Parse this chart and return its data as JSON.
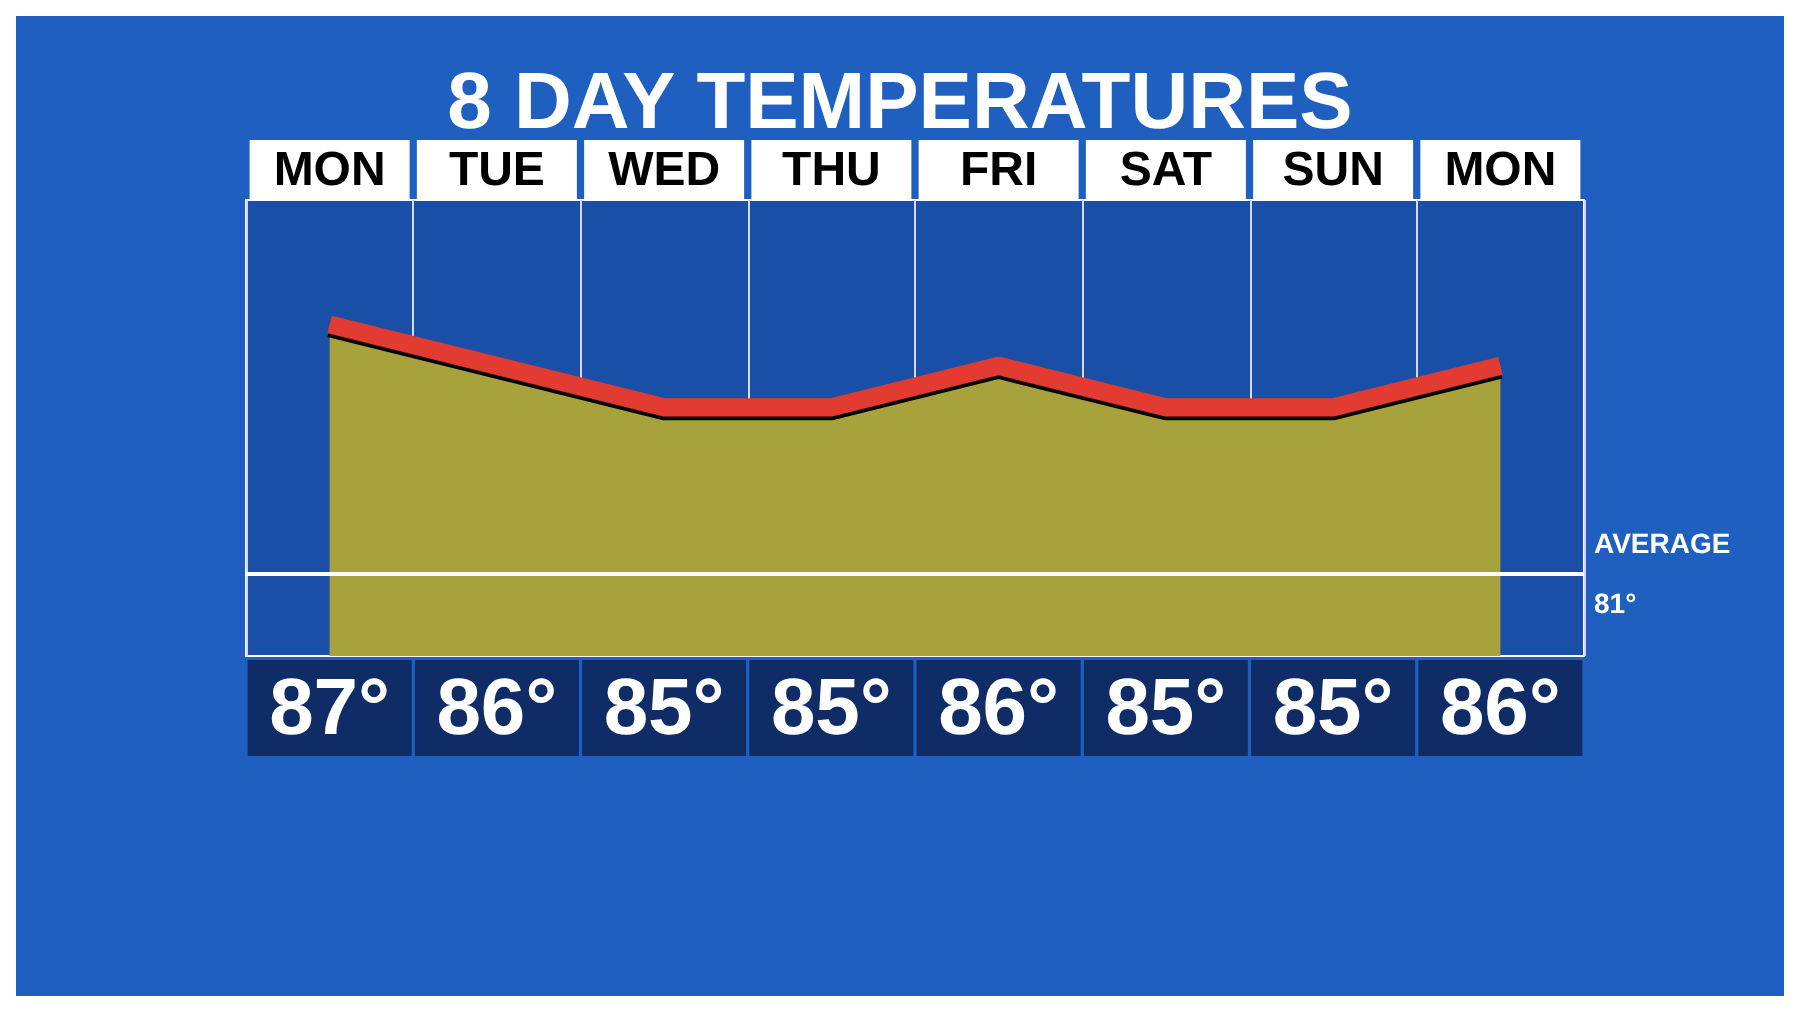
{
  "chart_data": {
    "type": "area",
    "title": "8 DAY TEMPERATURES",
    "categories": [
      "MON",
      "TUE",
      "WED",
      "THU",
      "FRI",
      "SAT",
      "SUN",
      "MON"
    ],
    "series": [
      {
        "color": "#e23a30",
        "values": [
          87,
          86,
          85,
          85,
          86,
          85,
          85,
          86
        ],
        "value_labels": [
          "87°",
          "86°",
          "85°",
          "85°",
          "86°",
          "85°",
          "85°",
          "86°"
        ]
      }
    ],
    "ylim": [
      79,
      90
    ],
    "ref_lines": [
      {
        "axis": "y",
        "value": 81,
        "label": "AVERAGE\n81°",
        "color": "#ffffff"
      }
    ],
    "grid": "x"
  }
}
